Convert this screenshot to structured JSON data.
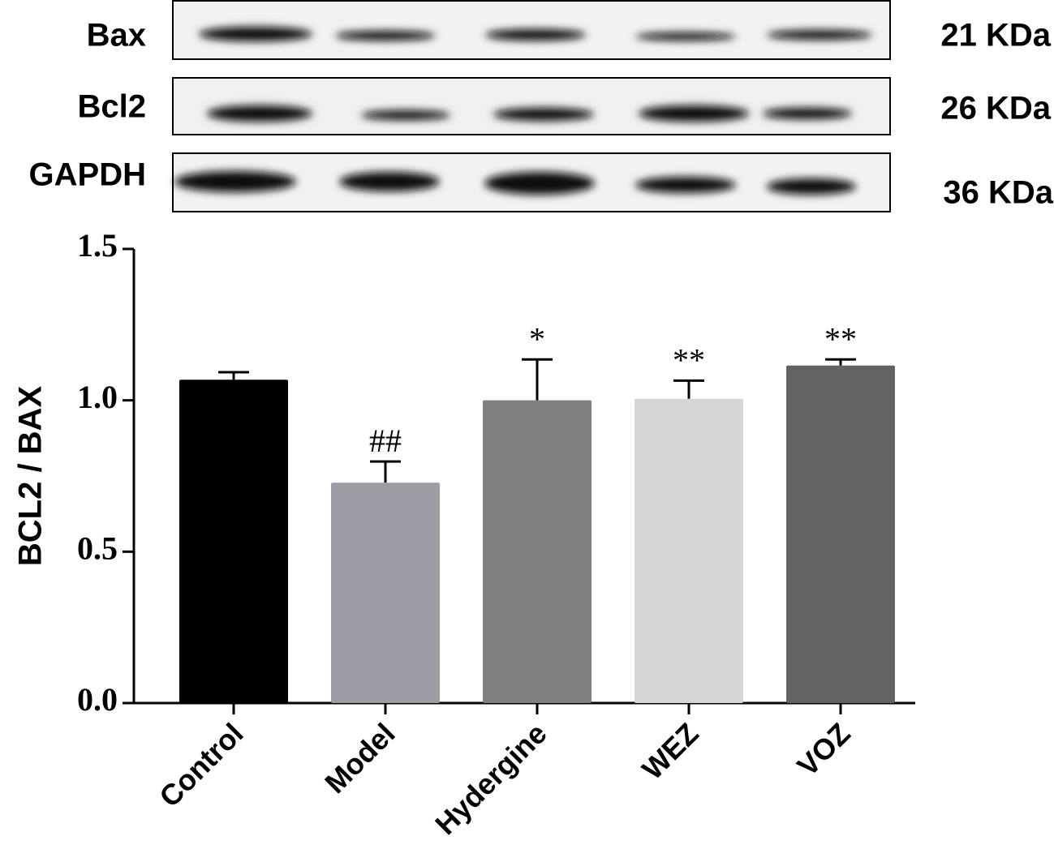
{
  "blots": [
    {
      "label": "Bax",
      "size": "21 KDa"
    },
    {
      "label": "Bcl2",
      "size": "26 KDa"
    },
    {
      "label": "GAPDH",
      "size": "36 KDa"
    }
  ],
  "chart_data": {
    "type": "bar",
    "ylabel": "BCL2 / BAX",
    "categories": [
      "Control",
      "Model",
      "Hydergine",
      "WEZ",
      "VOZ"
    ],
    "values": [
      1.068,
      0.728,
      1.0,
      1.005,
      1.115
    ],
    "errors": [
      0.025,
      0.07,
      0.135,
      0.06,
      0.02
    ],
    "annotations": [
      null,
      "##",
      "*",
      "**",
      "**"
    ],
    "colors": [
      "#000000",
      "#9c9ca4",
      "#808080",
      "#d6d6d6",
      "#646464"
    ],
    "ylim": [
      0,
      1.5
    ],
    "yticks": [
      {
        "value": 0,
        "label": "0.0"
      },
      {
        "value": 0.5,
        "label": "0.5"
      },
      {
        "value": 1,
        "label": "1.0"
      },
      {
        "value": 1.5,
        "label": "1.5"
      }
    ]
  }
}
